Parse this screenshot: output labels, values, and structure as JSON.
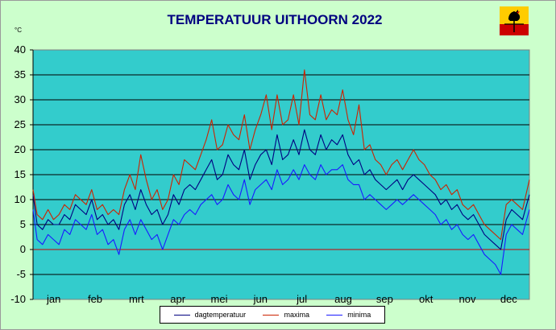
{
  "chart_data": {
    "type": "line",
    "title": "TEMPERATUUR UITHOORN 2022",
    "ylabel": "°C",
    "xlabel": "",
    "ylim": [
      -10,
      40
    ],
    "yticks": [
      "40",
      "35",
      "30",
      "25",
      "20",
      "15",
      "10",
      "5",
      "0",
      "-5",
      "-10"
    ],
    "categories": [
      "jan",
      "feb",
      "mrt",
      "apr",
      "mei",
      "jun",
      "jul",
      "aug",
      "sep",
      "okt",
      "nov",
      "dec"
    ],
    "grid": true,
    "legend_position": "bottom",
    "series": [
      {
        "name": "dagtemperatuur",
        "color": "#000080",
        "points": [
          [
            1,
            11
          ],
          [
            4,
            5
          ],
          [
            8,
            4
          ],
          [
            12,
            6
          ],
          [
            16,
            5
          ],
          [
            20,
            5
          ],
          [
            24,
            7
          ],
          [
            28,
            6
          ],
          [
            32,
            9
          ],
          [
            36,
            8
          ],
          [
            40,
            7
          ],
          [
            44,
            10
          ],
          [
            48,
            6
          ],
          [
            52,
            7
          ],
          [
            56,
            5
          ],
          [
            60,
            6
          ],
          [
            64,
            4
          ],
          [
            68,
            9
          ],
          [
            72,
            11
          ],
          [
            76,
            8
          ],
          [
            80,
            12
          ],
          [
            84,
            9
          ],
          [
            88,
            7
          ],
          [
            92,
            8
          ],
          [
            96,
            5
          ],
          [
            100,
            7
          ],
          [
            104,
            11
          ],
          [
            108,
            9
          ],
          [
            112,
            12
          ],
          [
            116,
            13
          ],
          [
            120,
            12
          ],
          [
            124,
            14
          ],
          [
            128,
            16
          ],
          [
            132,
            18
          ],
          [
            136,
            14
          ],
          [
            140,
            15
          ],
          [
            144,
            19
          ],
          [
            148,
            17
          ],
          [
            152,
            16
          ],
          [
            156,
            20
          ],
          [
            160,
            14
          ],
          [
            164,
            17
          ],
          [
            168,
            19
          ],
          [
            172,
            20
          ],
          [
            176,
            17
          ],
          [
            180,
            23
          ],
          [
            184,
            18
          ],
          [
            188,
            19
          ],
          [
            192,
            22
          ],
          [
            196,
            19
          ],
          [
            200,
            24
          ],
          [
            204,
            20
          ],
          [
            208,
            19
          ],
          [
            212,
            23
          ],
          [
            216,
            20
          ],
          [
            220,
            22
          ],
          [
            224,
            21
          ],
          [
            228,
            23
          ],
          [
            232,
            19
          ],
          [
            236,
            17
          ],
          [
            240,
            18
          ],
          [
            244,
            15
          ],
          [
            248,
            16
          ],
          [
            252,
            14
          ],
          [
            256,
            13
          ],
          [
            260,
            12
          ],
          [
            264,
            13
          ],
          [
            268,
            14
          ],
          [
            272,
            12
          ],
          [
            276,
            14
          ],
          [
            280,
            15
          ],
          [
            284,
            14
          ],
          [
            288,
            13
          ],
          [
            292,
            12
          ],
          [
            296,
            11
          ],
          [
            300,
            9
          ],
          [
            304,
            10
          ],
          [
            308,
            8
          ],
          [
            312,
            9
          ],
          [
            316,
            7
          ],
          [
            320,
            6
          ],
          [
            324,
            7
          ],
          [
            328,
            5
          ],
          [
            332,
            3
          ],
          [
            336,
            2
          ],
          [
            340,
            1
          ],
          [
            344,
            0
          ],
          [
            348,
            6
          ],
          [
            352,
            8
          ],
          [
            356,
            7
          ],
          [
            360,
            6
          ],
          [
            365,
            11
          ]
        ]
      },
      {
        "name": "maxima",
        "color": "#cc2200",
        "points": [
          [
            1,
            12
          ],
          [
            4,
            7
          ],
          [
            8,
            6
          ],
          [
            12,
            8
          ],
          [
            16,
            6
          ],
          [
            20,
            7
          ],
          [
            24,
            9
          ],
          [
            28,
            8
          ],
          [
            32,
            11
          ],
          [
            36,
            10
          ],
          [
            40,
            9
          ],
          [
            44,
            12
          ],
          [
            48,
            8
          ],
          [
            52,
            9
          ],
          [
            56,
            7
          ],
          [
            60,
            8
          ],
          [
            64,
            7
          ],
          [
            68,
            12
          ],
          [
            72,
            15
          ],
          [
            76,
            12
          ],
          [
            80,
            19
          ],
          [
            84,
            14
          ],
          [
            88,
            10
          ],
          [
            92,
            12
          ],
          [
            96,
            8
          ],
          [
            100,
            10
          ],
          [
            104,
            15
          ],
          [
            108,
            13
          ],
          [
            112,
            18
          ],
          [
            116,
            17
          ],
          [
            120,
            16
          ],
          [
            124,
            19
          ],
          [
            128,
            22
          ],
          [
            132,
            26
          ],
          [
            136,
            20
          ],
          [
            140,
            21
          ],
          [
            144,
            25
          ],
          [
            148,
            23
          ],
          [
            152,
            22
          ],
          [
            156,
            27
          ],
          [
            160,
            20
          ],
          [
            164,
            24
          ],
          [
            168,
            27
          ],
          [
            172,
            31
          ],
          [
            176,
            24
          ],
          [
            180,
            31
          ],
          [
            184,
            25
          ],
          [
            188,
            26
          ],
          [
            192,
            31
          ],
          [
            196,
            25
          ],
          [
            200,
            36
          ],
          [
            204,
            27
          ],
          [
            208,
            26
          ],
          [
            212,
            31
          ],
          [
            216,
            26
          ],
          [
            220,
            28
          ],
          [
            224,
            27
          ],
          [
            228,
            32
          ],
          [
            232,
            26
          ],
          [
            236,
            23
          ],
          [
            240,
            29
          ],
          [
            244,
            20
          ],
          [
            248,
            21
          ],
          [
            252,
            18
          ],
          [
            256,
            17
          ],
          [
            260,
            15
          ],
          [
            264,
            17
          ],
          [
            268,
            18
          ],
          [
            272,
            16
          ],
          [
            276,
            18
          ],
          [
            280,
            20
          ],
          [
            284,
            18
          ],
          [
            288,
            17
          ],
          [
            292,
            15
          ],
          [
            296,
            14
          ],
          [
            300,
            12
          ],
          [
            304,
            13
          ],
          [
            308,
            11
          ],
          [
            312,
            12
          ],
          [
            316,
            9
          ],
          [
            320,
            8
          ],
          [
            324,
            9
          ],
          [
            328,
            7
          ],
          [
            332,
            5
          ],
          [
            336,
            4
          ],
          [
            340,
            3
          ],
          [
            344,
            2
          ],
          [
            348,
            9
          ],
          [
            352,
            10
          ],
          [
            356,
            9
          ],
          [
            360,
            8
          ],
          [
            365,
            14
          ]
        ]
      },
      {
        "name": "minima",
        "color": "#1a1aff",
        "points": [
          [
            1,
            8
          ],
          [
            4,
            2
          ],
          [
            8,
            1
          ],
          [
            12,
            3
          ],
          [
            16,
            2
          ],
          [
            20,
            1
          ],
          [
            24,
            4
          ],
          [
            28,
            3
          ],
          [
            32,
            6
          ],
          [
            36,
            5
          ],
          [
            40,
            4
          ],
          [
            44,
            7
          ],
          [
            48,
            3
          ],
          [
            52,
            4
          ],
          [
            56,
            1
          ],
          [
            60,
            2
          ],
          [
            64,
            -1
          ],
          [
            68,
            4
          ],
          [
            72,
            6
          ],
          [
            76,
            3
          ],
          [
            80,
            6
          ],
          [
            84,
            4
          ],
          [
            88,
            2
          ],
          [
            92,
            3
          ],
          [
            96,
            0
          ],
          [
            100,
            3
          ],
          [
            104,
            6
          ],
          [
            108,
            5
          ],
          [
            112,
            7
          ],
          [
            116,
            8
          ],
          [
            120,
            7
          ],
          [
            124,
            9
          ],
          [
            128,
            10
          ],
          [
            132,
            11
          ],
          [
            136,
            9
          ],
          [
            140,
            10
          ],
          [
            144,
            13
          ],
          [
            148,
            11
          ],
          [
            152,
            10
          ],
          [
            156,
            14
          ],
          [
            160,
            9
          ],
          [
            164,
            12
          ],
          [
            168,
            13
          ],
          [
            172,
            14
          ],
          [
            176,
            12
          ],
          [
            180,
            16
          ],
          [
            184,
            13
          ],
          [
            188,
            14
          ],
          [
            192,
            16
          ],
          [
            196,
            14
          ],
          [
            200,
            17
          ],
          [
            204,
            15
          ],
          [
            208,
            14
          ],
          [
            212,
            17
          ],
          [
            216,
            15
          ],
          [
            220,
            16
          ],
          [
            224,
            16
          ],
          [
            228,
            17
          ],
          [
            232,
            14
          ],
          [
            236,
            13
          ],
          [
            240,
            13
          ],
          [
            244,
            10
          ],
          [
            248,
            11
          ],
          [
            252,
            10
          ],
          [
            256,
            9
          ],
          [
            260,
            8
          ],
          [
            264,
            9
          ],
          [
            268,
            10
          ],
          [
            272,
            9
          ],
          [
            276,
            10
          ],
          [
            280,
            11
          ],
          [
            284,
            10
          ],
          [
            288,
            9
          ],
          [
            292,
            8
          ],
          [
            296,
            7
          ],
          [
            300,
            5
          ],
          [
            304,
            6
          ],
          [
            308,
            4
          ],
          [
            312,
            5
          ],
          [
            316,
            3
          ],
          [
            320,
            2
          ],
          [
            324,
            3
          ],
          [
            328,
            1
          ],
          [
            332,
            -1
          ],
          [
            336,
            -2
          ],
          [
            340,
            -3
          ],
          [
            344,
            -5
          ],
          [
            348,
            3
          ],
          [
            352,
            5
          ],
          [
            356,
            4
          ],
          [
            360,
            3
          ],
          [
            365,
            8
          ]
        ]
      }
    ]
  }
}
